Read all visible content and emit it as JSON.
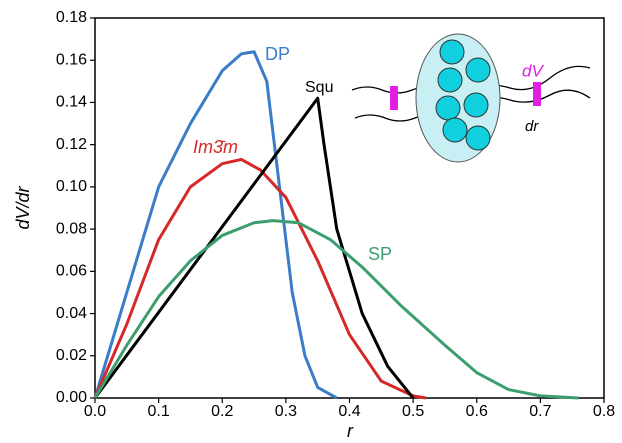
{
  "chart_data": {
    "type": "line",
    "x_label": "r",
    "y_label": "dV/dr",
    "xlim": [
      0,
      0.8
    ],
    "ylim": [
      0,
      0.18
    ],
    "xticks": [
      {
        "value": 0,
        "label": "0.0"
      },
      0.1,
      0.2,
      0.3,
      0.4,
      0.5,
      0.6,
      0.7,
      0.8
    ],
    "yticks": [
      {
        "value": 0,
        "label": "0.00"
      },
      0.02,
      0.04,
      0.06,
      0.08,
      {
        "value": 0.1,
        "label": "0.10"
      },
      0.12,
      0.14,
      0.16,
      0.18
    ],
    "series": [
      {
        "name": "DP",
        "color": "#3a7cc8",
        "x": [
          0,
          0.05,
          0.1,
          0.15,
          0.2,
          0.23,
          0.25,
          0.27,
          0.29,
          0.31,
          0.33,
          0.35,
          0.38
        ],
        "values": [
          0,
          0.05,
          0.1,
          0.13,
          0.155,
          0.163,
          0.164,
          0.15,
          0.1,
          0.05,
          0.02,
          0.005,
          0
        ]
      },
      {
        "name": "Im3̄m",
        "color": "#d62828",
        "x": [
          0,
          0.05,
          0.1,
          0.15,
          0.2,
          0.23,
          0.26,
          0.3,
          0.35,
          0.4,
          0.45,
          0.5,
          0.52
        ],
        "values": [
          0,
          0.035,
          0.075,
          0.1,
          0.111,
          0.113,
          0.108,
          0.095,
          0.065,
          0.03,
          0.008,
          0.001,
          0
        ]
      },
      {
        "name": "Squ",
        "color": "#000000",
        "x": [
          0,
          0.35,
          0.36,
          0.38,
          0.42,
          0.46,
          0.5
        ],
        "values": [
          0,
          0.142,
          0.12,
          0.08,
          0.04,
          0.015,
          0
        ]
      },
      {
        "name": "SP",
        "color": "#3c9e6e",
        "x": [
          0,
          0.05,
          0.1,
          0.15,
          0.2,
          0.25,
          0.28,
          0.32,
          0.37,
          0.42,
          0.48,
          0.55,
          0.6,
          0.65,
          0.7,
          0.76
        ],
        "values": [
          0,
          0.025,
          0.048,
          0.065,
          0.077,
          0.083,
          0.084,
          0.083,
          0.075,
          0.062,
          0.044,
          0.025,
          0.012,
          0.004,
          0.001,
          0
        ]
      }
    ],
    "inset_labels": [
      "dV",
      "dr"
    ]
  }
}
